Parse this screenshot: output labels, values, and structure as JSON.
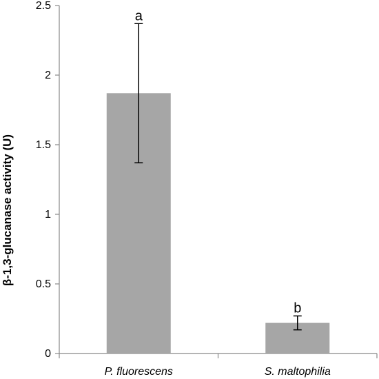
{
  "chart_data": {
    "type": "bar",
    "title": "",
    "xlabel": "",
    "ylabel": "β-1,3-glucanase activity (U)",
    "ylim": [
      0,
      2.5
    ],
    "yticks": [
      0,
      0.5,
      1,
      1.5,
      2,
      2.5
    ],
    "ytick_labels": [
      "0",
      "0.5",
      "1",
      "1.5",
      "2",
      "2.5"
    ],
    "grid": false,
    "categories": [
      "P. fluorescens",
      "S. maltophilia"
    ],
    "values": [
      1.87,
      0.22
    ],
    "error_low": [
      1.37,
      0.17
    ],
    "error_high": [
      2.37,
      0.27
    ],
    "significance_labels": [
      "a",
      "b"
    ],
    "bar_color": "#a6a6a6"
  }
}
